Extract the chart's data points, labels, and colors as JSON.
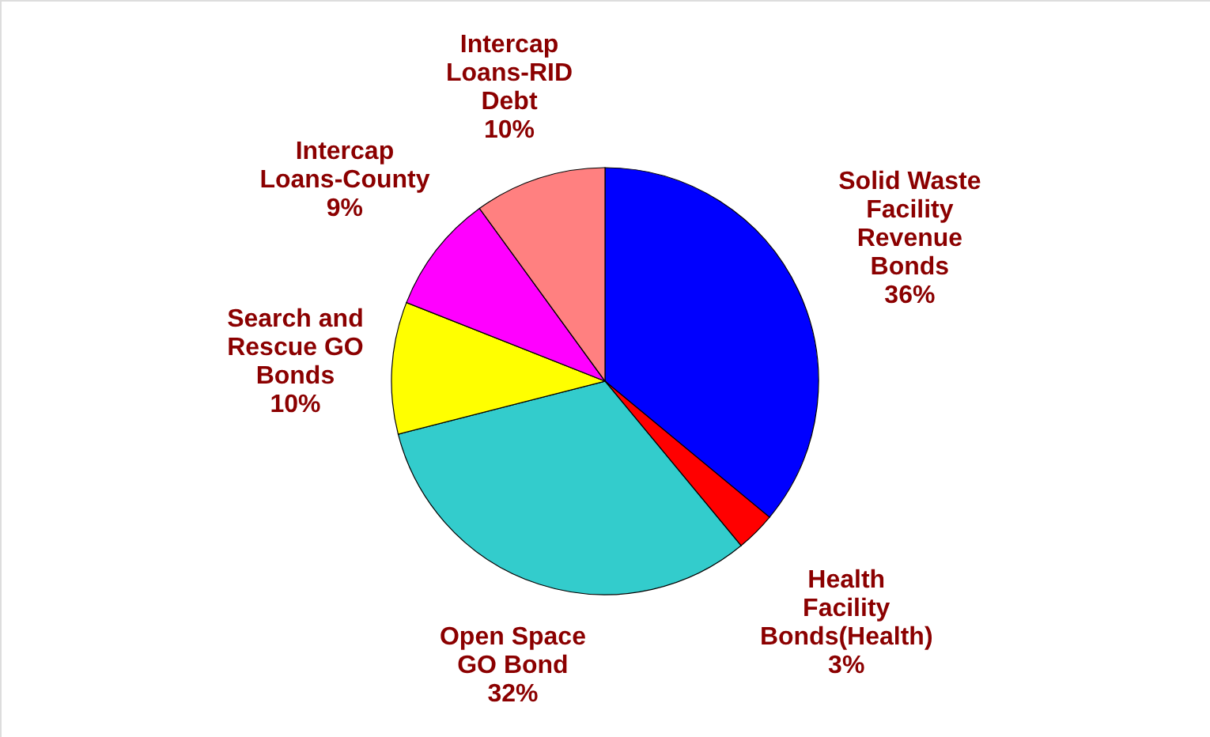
{
  "chart_data": {
    "type": "pie",
    "categories": [
      "Solid Waste Facility Revenue Bonds",
      "Health Facility Bonds(Health)",
      "Open Space GO Bond",
      "Search and Rescue GO Bonds",
      "Intercap Loans-County",
      "Intercap Loans-RID Debt"
    ],
    "values": [
      36,
      3,
      32,
      10,
      9,
      10
    ],
    "value_labels": [
      "36%",
      "3%",
      "32%",
      "10%",
      "9%",
      "10%"
    ],
    "colors": [
      "#0000ff",
      "#ff0000",
      "#33cccc",
      "#ffff00",
      "#ff00ff",
      "#ff8080"
    ]
  }
}
